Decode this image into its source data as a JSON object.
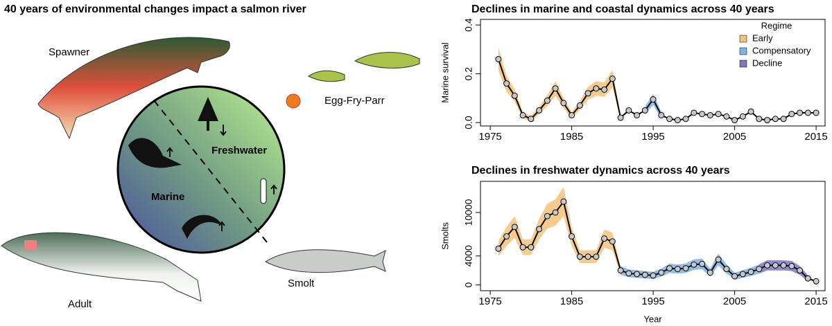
{
  "diagram": {
    "title": "40 years of environmental changes impact a salmon river",
    "labels": {
      "spawner": "Spawner",
      "egg_fry_parr": "Egg-Fry-Parr",
      "freshwater": "Freshwater",
      "marine": "Marine",
      "smolt": "Smolt",
      "adult": "Adult"
    }
  },
  "chart_data": [
    {
      "type": "line",
      "title": "Declines in marine and coastal dynamics across 40 years",
      "ylabel": "Marine survival",
      "x": [
        1976,
        1977,
        1978,
        1979,
        1980,
        1981,
        1982,
        1983,
        1984,
        1985,
        1986,
        1987,
        1988,
        1989,
        1990,
        1991,
        1992,
        1993,
        1994,
        1995,
        1996,
        1997,
        1998,
        1999,
        2000,
        2001,
        2002,
        2003,
        2004,
        2005,
        2006,
        2007,
        2008,
        2009,
        2010,
        2011,
        2012,
        2013,
        2014,
        2015
      ],
      "values": [
        0.26,
        0.16,
        0.11,
        0.03,
        0.015,
        0.05,
        0.09,
        0.14,
        0.08,
        0.03,
        0.07,
        0.12,
        0.14,
        0.135,
        0.18,
        0.02,
        0.05,
        0.03,
        0.05,
        0.095,
        0.03,
        0.015,
        0.01,
        0.015,
        0.04,
        0.035,
        0.03,
        0.035,
        0.025,
        0.01,
        0.025,
        0.045,
        0.015,
        0.01,
        0.015,
        0.015,
        0.035,
        0.04,
        0.04,
        0.04
      ],
      "color": "#000000",
      "xlim": [
        1973.8,
        2016.1
      ],
      "xticks": [
        1975,
        1985,
        1995,
        2005,
        2015
      ],
      "ylim": [
        -0.014,
        0.423
      ],
      "yticks": [
        {
          "value": 0,
          "label": "0.0"
        },
        {
          "value": 0.2,
          "label": "0.2"
        },
        {
          "value": 0.4,
          "label": "0.4"
        }
      ],
      "bands": [
        {
          "color": "#f5c27a",
          "start": 1976,
          "end": 1991
        },
        {
          "color": "#7fb2e5",
          "start": 1994,
          "end": 1996
        }
      ],
      "legend": {
        "title": "Regime",
        "position": "top-right",
        "entries": [
          {
            "name": "Early",
            "color": "#f5c27a"
          },
          {
            "name": "Compensatory",
            "color": "#7fb2e5"
          },
          {
            "name": "Decline",
            "color": "#7b78c4"
          }
        ]
      }
    },
    {
      "type": "line",
      "title": "Declines in freshwater dynamics across 40 years",
      "ylabel": "Smolts",
      "xlabel": "Year",
      "x": [
        1976,
        1977,
        1978,
        1979,
        1980,
        1981,
        1982,
        1983,
        1984,
        1985,
        1986,
        1987,
        1988,
        1989,
        1990,
        1991,
        1992,
        1993,
        1994,
        1995,
        1996,
        1997,
        1998,
        1999,
        2000,
        2001,
        2002,
        2003,
        2004,
        2005,
        2006,
        2007,
        2008,
        2009,
        2010,
        2011,
        2012,
        2013,
        2014,
        2015
      ],
      "values": [
        5000,
        6700,
        8000,
        5200,
        5200,
        7700,
        9500,
        10000,
        11500,
        6700,
        3900,
        3900,
        3900,
        6400,
        6000,
        2000,
        1600,
        1500,
        1400,
        1300,
        1700,
        2300,
        2200,
        2300,
        2800,
        2900,
        1700,
        3500,
        2200,
        1200,
        1500,
        1800,
        2200,
        2700,
        2700,
        2700,
        2600,
        2000,
        900,
        500
      ],
      "color": "#000000",
      "xlim": [
        1973.8,
        2016.1
      ],
      "xticks": [
        1975,
        1985,
        1995,
        2005,
        2015
      ],
      "ylim": [
        -800,
        14300
      ],
      "yticks": [
        0,
        4000,
        10000
      ],
      "bands": [
        {
          "color": "#f5c27a",
          "start": 1976,
          "end": 1991
        },
        {
          "color": "#7fb2e5",
          "start": 1991,
          "end": 2008
        },
        {
          "color": "#7b78c4",
          "start": 2008,
          "end": 2014
        }
      ]
    }
  ]
}
